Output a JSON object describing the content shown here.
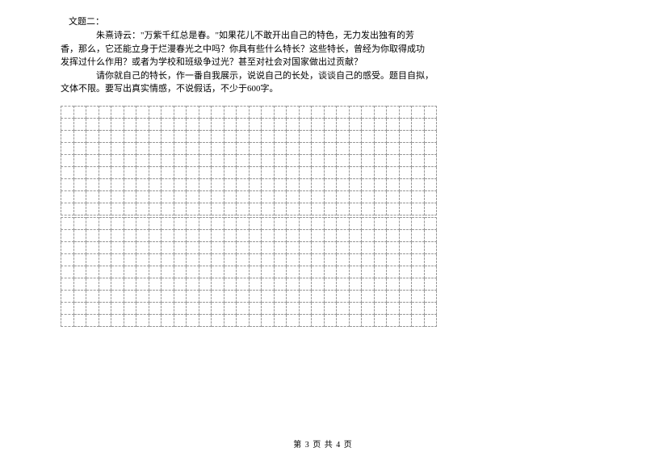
{
  "header": {
    "topic_label": "文题二："
  },
  "prompt": {
    "line1": "朱熹诗云：\"万紫千红总是春。\"如果花儿不敢开出自己的特色，无力发出独有的芳",
    "line2": "香，那么，它还能立身于烂漫春光之中吗？你具有些什么特长？这些特长，曾经为你取得成功",
    "line3": "发挥过什么作用？或者为学校和班级争过光？甚至对社会对国家做出过贡献？",
    "line4": "请你就自己的特长，作一番自我展示，说说自己的长处，谈谈自己的感受。题目自拟，",
    "line5": "文体不限。要写出真实情感，不说假话，不少于600字。"
  },
  "grid": {
    "cols": 30,
    "block1_rows": 9,
    "block2_rows": 9,
    "cell_border_color": "#999999",
    "border_style": "dashed"
  },
  "footer": {
    "page_text": "第 3 页 共 4 页"
  }
}
